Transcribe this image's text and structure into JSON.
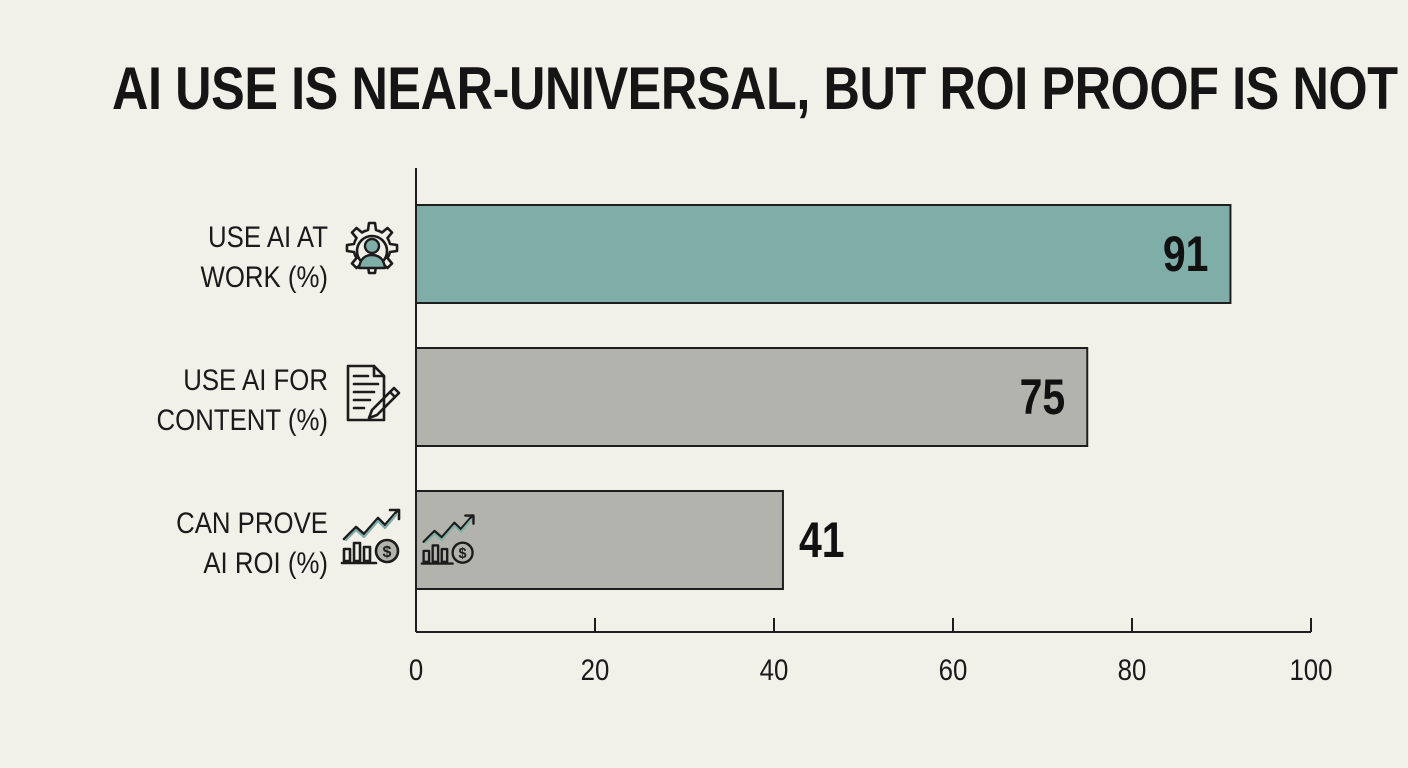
{
  "chart_data": {
    "type": "bar",
    "orientation": "horizontal",
    "title": "AI USE IS NEAR-UNIVERSAL, BUT ROI PROOF IS NOT",
    "categories": [
      [
        "USE AI AT",
        "WORK (%)"
      ],
      [
        "USE AI FOR",
        "CONTENT (%)"
      ],
      [
        "CAN PROVE",
        "AI ROI (%)"
      ]
    ],
    "values": [
      91,
      75,
      41
    ],
    "icons": [
      "gear-person-icon",
      "document-pen-icon",
      "growth-chart-dollar-icon"
    ],
    "colors": [
      "#7fada7",
      "#b2b3ac",
      "#b2b3ac"
    ],
    "xlim": [
      0,
      100
    ],
    "xticks": [
      0,
      20,
      40,
      60,
      80,
      100
    ],
    "xlabel": "",
    "ylabel": "",
    "grid": false,
    "legend": "none"
  }
}
